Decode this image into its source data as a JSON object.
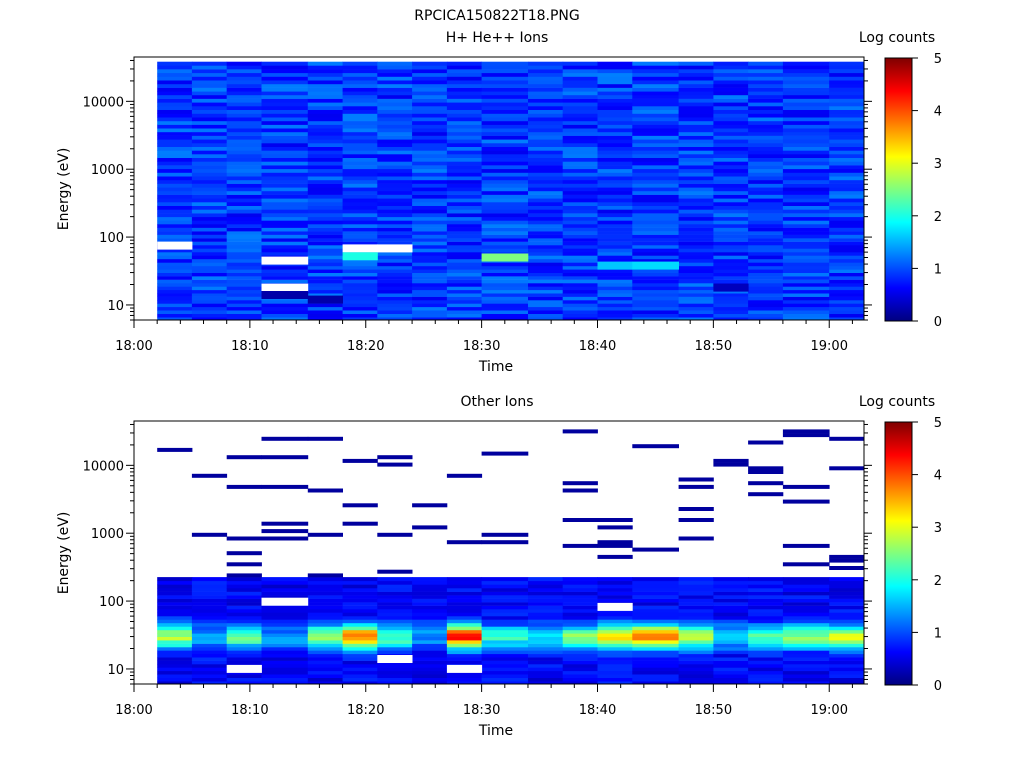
{
  "page_title": "RPCICA150822T18.PNG",
  "chart_data": [
    {
      "type": "heatmap",
      "title": "H+ He++ Ions",
      "xlabel": "Time",
      "ylabel": "Energy (eV)",
      "colorbar_label": "Log counts",
      "colorbar_range": [
        0,
        5
      ],
      "colorbar_ticks": [
        "0",
        "1",
        "2",
        "3",
        "4",
        "5"
      ],
      "colormap": [
        "#00007f",
        "#0000ff",
        "#007fff",
        "#00ffff",
        "#7fff7f",
        "#ffff00",
        "#ff7f00",
        "#ff0000",
        "#7f0000"
      ],
      "xlim": [
        "18:00",
        "19:03"
      ],
      "x_ticks": [
        "18:00",
        "18:10",
        "18:20",
        "18:30",
        "18:40",
        "18:50",
        "19:00"
      ],
      "ylim": [
        6,
        45000
      ],
      "yscale": "log",
      "y_ticks": [
        "10",
        "100",
        "1000",
        "10000"
      ],
      "time_bins": [
        "18:02-18:05",
        "18:05-18:08",
        "18:08-18:11",
        "18:11-18:15",
        "18:15-18:18",
        "18:18-18:21",
        "18:21-18:24",
        "18:24-18:27",
        "18:27-18:30",
        "18:30-18:34",
        "18:34-18:37",
        "18:37-18:40",
        "18:40-18:43",
        "18:43-18:47",
        "18:47-18:50",
        "18:50-18:53",
        "18:53-18:56",
        "18:56-19:00",
        "19:00-19:03"
      ],
      "energy_bins_eV": [
        7,
        10,
        14,
        20,
        28,
        40,
        57,
        81,
        115,
        165,
        240,
        350,
        510,
        740,
        1080,
        1570,
        2290,
        3330,
        4840,
        7050,
        10300,
        15000,
        21800,
        31800
      ],
      "background_log_counts": 0.9,
      "features": [
        {
          "time": "18:13",
          "energy_eV": 18,
          "log_counts": null
        },
        {
          "time": "18:13",
          "energy_eV": 14,
          "log_counts": 0.2
        },
        {
          "time": "18:13",
          "energy_eV": 45,
          "log_counts": null
        },
        {
          "time": "18:20",
          "energy_eV": 68,
          "log_counts": null
        },
        {
          "time": "18:23",
          "energy_eV": 68,
          "log_counts": null
        },
        {
          "time": "18:20",
          "energy_eV": 52,
          "log_counts": 2.0
        },
        {
          "time": "18:30",
          "energy_eV": 50,
          "log_counts": 2.5
        },
        {
          "time": "18:02",
          "energy_eV": 75,
          "log_counts": null
        },
        {
          "time": "18:42",
          "energy_eV": 38,
          "log_counts": 1.6
        },
        {
          "time": "18:45",
          "energy_eV": 38,
          "log_counts": 1.7
        },
        {
          "time": "18:51",
          "energy_eV": 18,
          "log_counts": 0.3
        },
        {
          "time": "18:16",
          "energy_eV": 12,
          "log_counts": 0.2
        }
      ]
    },
    {
      "type": "heatmap",
      "title": "Other Ions",
      "xlabel": "Time",
      "ylabel": "Energy (eV)",
      "colorbar_label": "Log counts",
      "colorbar_range": [
        0,
        5
      ],
      "colorbar_ticks": [
        "0",
        "1",
        "2",
        "3",
        "4",
        "5"
      ],
      "colormap": [
        "#00007f",
        "#0000ff",
        "#007fff",
        "#00ffff",
        "#7fff7f",
        "#ffff00",
        "#ff7f00",
        "#ff0000",
        "#7f0000"
      ],
      "xlim": [
        "18:00",
        "19:03"
      ],
      "x_ticks": [
        "18:00",
        "18:10",
        "18:20",
        "18:30",
        "18:40",
        "18:50",
        "19:00"
      ],
      "ylim": [
        6,
        45000
      ],
      "yscale": "log",
      "y_ticks": [
        "10",
        "100",
        "1000",
        "10000"
      ],
      "time_bins": [
        "18:02-18:05",
        "18:05-18:08",
        "18:08-18:11",
        "18:11-18:15",
        "18:15-18:18",
        "18:18-18:21",
        "18:21-18:24",
        "18:24-18:27",
        "18:27-18:30",
        "18:30-18:34",
        "18:34-18:37",
        "18:37-18:40",
        "18:40-18:43",
        "18:43-18:47",
        "18:47-18:50",
        "18:50-18:53",
        "18:53-18:56",
        "18:56-19:00",
        "19:00-19:03"
      ],
      "energy_bins_eV": [
        7,
        10,
        14,
        20,
        28,
        40,
        57,
        81,
        115,
        165,
        240,
        350,
        510,
        740,
        1080,
        1570,
        2290,
        3330,
        4840,
        7050,
        10300,
        15000,
        21800,
        31800
      ],
      "filled_below_eV": 230,
      "sparse_above_log_counts": 0.15,
      "peak_energy_eV": 30,
      "peak_log_counts_by_bin": [
        2.7,
        1.5,
        2.4,
        1.4,
        2.6,
        3.8,
        2.3,
        1.4,
        4.2,
        2.1,
        1.8,
        2.5,
        3.4,
        3.9,
        2.9,
        1.8,
        2.4,
        2.6,
        2.9
      ],
      "features": [
        {
          "time": "18:09",
          "energy_eV": 10,
          "log_counts": null
        },
        {
          "time": "18:29",
          "energy_eV": 10,
          "log_counts": null
        },
        {
          "time": "18:13",
          "energy_eV": 98,
          "log_counts": null
        },
        {
          "time": "18:21",
          "energy_eV": 14,
          "log_counts": null
        },
        {
          "time": "18:40",
          "energy_eV": 82,
          "log_counts": null
        }
      ]
    }
  ]
}
